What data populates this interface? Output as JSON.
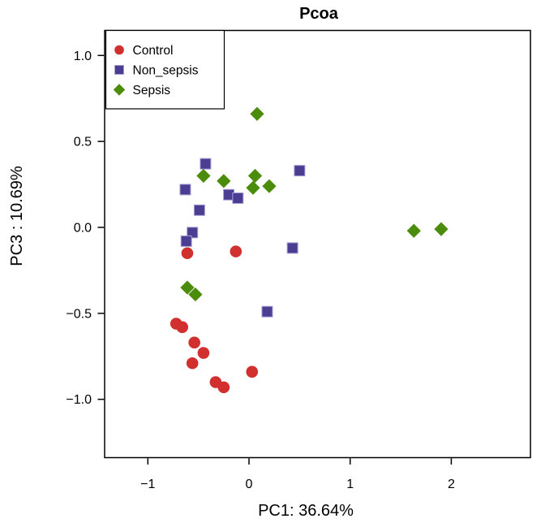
{
  "title": "Pcoa",
  "axes": {
    "xlabel": "PC1: 36.64%",
    "ylabel": "PC3 : 10.69%",
    "x_ticks": [
      {
        "value": -1,
        "label": "−1"
      },
      {
        "value": 0,
        "label": "0"
      },
      {
        "value": 1,
        "label": "1"
      },
      {
        "value": 2,
        "label": "2"
      }
    ],
    "y_ticks": [
      {
        "value": -1.0,
        "label": "−1.0"
      },
      {
        "value": -0.5,
        "label": "−0.5"
      },
      {
        "value": 0.0,
        "label": "0.0"
      },
      {
        "value": 0.5,
        "label": "0.5"
      },
      {
        "value": 1.0,
        "label": "1.0"
      }
    ]
  },
  "colors": {
    "control": "#d2302e",
    "non_sepsis": "#4a3d92",
    "sepsis": "#4b8c0b",
    "square_edge": "#a79ed4",
    "axis": "#000000",
    "background": "#ffffff"
  },
  "legend": {
    "position": "top-left",
    "items": [
      {
        "label": "Control",
        "marker": "circle",
        "color": "#d2302e"
      },
      {
        "label": "Non_sepsis",
        "marker": "square",
        "color": "#4a3d92"
      },
      {
        "label": "Sepsis",
        "marker": "diamond",
        "color": "#4b8c0b"
      }
    ]
  },
  "chart_data": {
    "type": "scatter",
    "title": "Pcoa",
    "xlabel": "PC1: 36.64%",
    "ylabel": "PC3 : 10.69%",
    "xlim": [
      -1.43,
      2.79
    ],
    "ylim": [
      -1.34,
      1.15
    ],
    "x_tick_values": [
      -1,
      0,
      1,
      2
    ],
    "y_tick_values": [
      -1.0,
      -0.5,
      0.0,
      0.5,
      1.0
    ],
    "grid": false,
    "legend_position": "top-left",
    "series": [
      {
        "name": "Control",
        "marker": "circle",
        "color": "#d2302e",
        "points": [
          [
            -0.61,
            -0.15
          ],
          [
            -0.13,
            -0.14
          ],
          [
            -0.72,
            -0.56
          ],
          [
            -0.66,
            -0.58
          ],
          [
            -0.54,
            -0.67
          ],
          [
            -0.45,
            -0.73
          ],
          [
            -0.56,
            -0.79
          ],
          [
            -0.33,
            -0.9
          ],
          [
            -0.25,
            -0.93
          ],
          [
            0.03,
            -0.84
          ]
        ]
      },
      {
        "name": "Non_sepsis",
        "marker": "square",
        "color": "#4a3d92",
        "points": [
          [
            -0.43,
            0.37
          ],
          [
            -0.63,
            0.22
          ],
          [
            -0.2,
            0.19
          ],
          [
            -0.11,
            0.17
          ],
          [
            -0.49,
            0.1
          ],
          [
            0.5,
            0.33
          ],
          [
            -0.56,
            -0.03
          ],
          [
            -0.62,
            -0.08
          ],
          [
            0.43,
            -0.12
          ],
          [
            0.18,
            -0.49
          ]
        ]
      },
      {
        "name": "Sepsis",
        "marker": "diamond",
        "color": "#4b8c0b",
        "points": [
          [
            0.08,
            0.66
          ],
          [
            -0.45,
            0.3
          ],
          [
            -0.25,
            0.27
          ],
          [
            0.06,
            0.3
          ],
          [
            0.04,
            0.23
          ],
          [
            0.2,
            0.24
          ],
          [
            -0.61,
            -0.35
          ],
          [
            -0.53,
            -0.39
          ],
          [
            1.63,
            -0.02
          ],
          [
            1.9,
            -0.01
          ]
        ]
      }
    ]
  }
}
